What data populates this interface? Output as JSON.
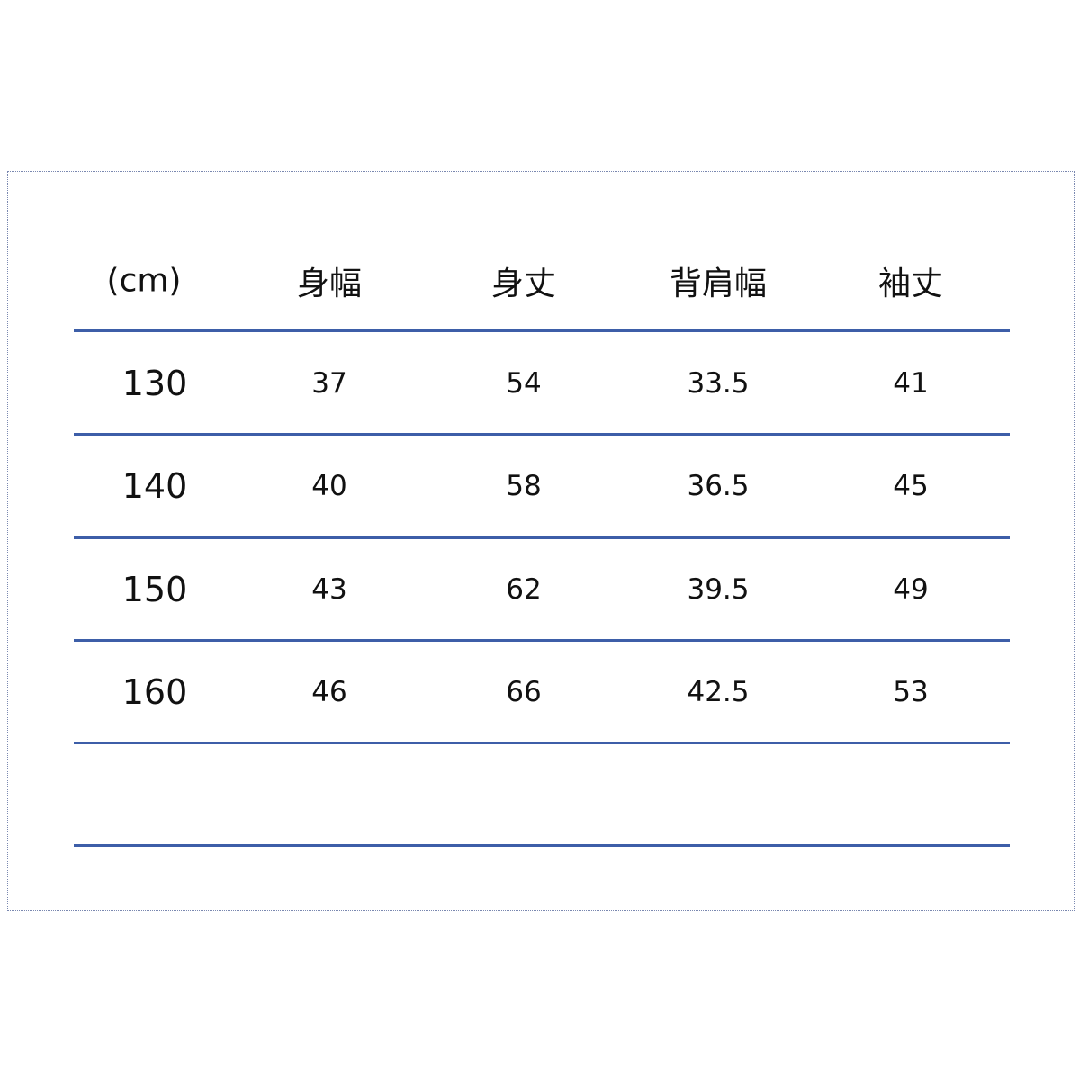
{
  "table": {
    "headers": [
      "(cm)",
      "身幅",
      "身丈",
      "背肩幅",
      "袖丈"
    ],
    "rows": [
      [
        "130",
        "37",
        "54",
        "33.5",
        "41"
      ],
      [
        "140",
        "40",
        "58",
        "36.5",
        "45"
      ],
      [
        "150",
        "43",
        "62",
        "39.5",
        "49"
      ],
      [
        "160",
        "46",
        "66",
        "42.5",
        "53"
      ]
    ]
  },
  "colors": {
    "rule": "#3d5ea8",
    "frame": "#7a88b0"
  }
}
